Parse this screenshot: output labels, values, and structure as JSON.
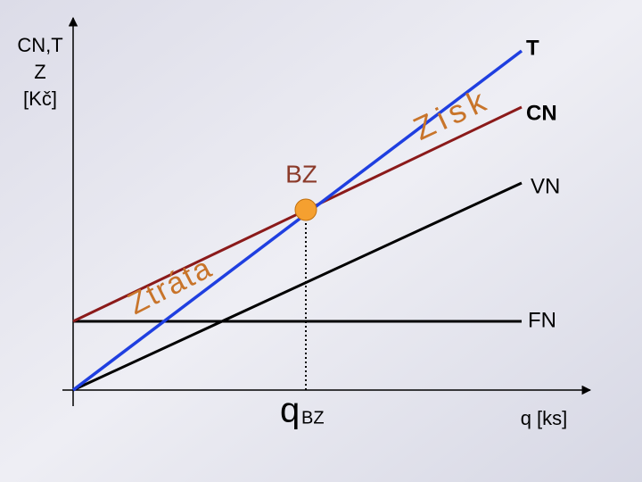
{
  "axes": {
    "y_label_lines": [
      "CN,T",
      "Z",
      "[Kč]"
    ],
    "x_label": "q [ks]"
  },
  "lines": [
    {
      "label": "T"
    },
    {
      "label": "CN"
    },
    {
      "label": "VN"
    },
    {
      "label": "FN"
    }
  ],
  "regions": {
    "profit": "Zisk",
    "loss": "Ztráta"
  },
  "break_even": {
    "label": "BZ",
    "q_symbol": "q",
    "q_subscript": "BZ"
  }
}
